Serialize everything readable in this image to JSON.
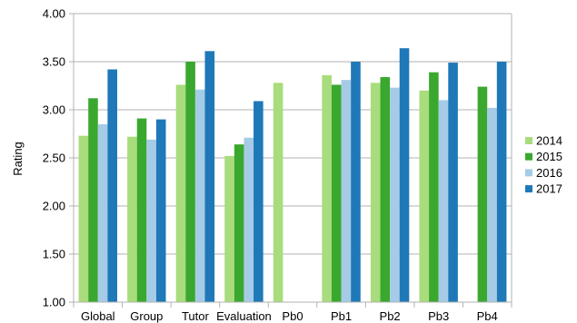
{
  "chart_data": {
    "type": "bar",
    "title": "",
    "xlabel": "",
    "ylabel": "Rating",
    "ylim": [
      1.0,
      4.0
    ],
    "yticks": [
      "1.00",
      "1.50",
      "2.00",
      "2.50",
      "3.00",
      "3.50",
      "4.00"
    ],
    "categories": [
      "Global",
      "Group",
      "Tutor",
      "Evaluation",
      "Pb0",
      "Pb1",
      "Pb2",
      "Pb3",
      "Pb4"
    ],
    "series": [
      {
        "name": "2014",
        "color": "#a8dc7c",
        "values": [
          2.73,
          2.72,
          3.26,
          2.52,
          3.28,
          3.36,
          3.28,
          3.2,
          null
        ]
      },
      {
        "name": "2015",
        "color": "#3aa82e",
        "values": [
          3.12,
          2.91,
          3.5,
          2.64,
          null,
          3.26,
          3.34,
          3.39,
          3.24
        ]
      },
      {
        "name": "2016",
        "color": "#a6cbe6",
        "values": [
          2.85,
          2.69,
          3.21,
          2.71,
          null,
          3.31,
          3.23,
          3.1,
          3.02
        ]
      },
      {
        "name": "2017",
        "color": "#1f78b8",
        "values": [
          3.42,
          2.9,
          3.61,
          3.09,
          null,
          3.5,
          3.64,
          3.49,
          3.5
        ]
      }
    ],
    "grid": true,
    "legend_position": "right"
  }
}
